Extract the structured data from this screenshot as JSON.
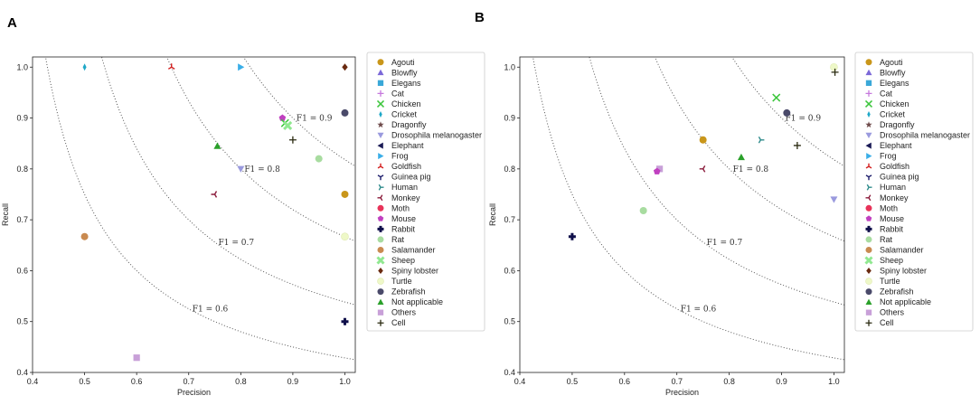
{
  "chart_data": [
    {
      "panel": "A",
      "type": "scatter",
      "xlabel": "Precision",
      "ylabel": "Recall",
      "xlim": [
        0.4,
        1.02
      ],
      "ylim": [
        0.4,
        1.02
      ],
      "xticks": [
        "0.4",
        "0.5",
        "0.6",
        "0.7",
        "0.8",
        "0.9",
        "1.0"
      ],
      "yticks": [
        "0.4",
        "0.5",
        "0.6",
        "0.7",
        "0.8",
        "0.9",
        "1.0"
      ],
      "f1_curves": [
        {
          "f1": 0.6,
          "label": "F1 = 0.6",
          "label_x": 0.7
        },
        {
          "f1": 0.7,
          "label": "F1 = 0.7",
          "label_x": 0.75
        },
        {
          "f1": 0.8,
          "label": "F1 = 0.8",
          "label_x": 0.8
        },
        {
          "f1": 0.9,
          "label": "F1 = 0.9",
          "label_x": 0.9
        }
      ],
      "points": [
        {
          "series": "Agouti",
          "x": 1.0,
          "y": 0.75
        },
        {
          "series": "Cricket",
          "x": 0.5,
          "y": 1.0
        },
        {
          "series": "Goldfish",
          "x": 0.667,
          "y": 1.0
        },
        {
          "series": "Frog",
          "x": 0.8,
          "y": 1.0
        },
        {
          "series": "Spiny lobster",
          "x": 1.0,
          "y": 1.0
        },
        {
          "series": "Zebrafish",
          "x": 1.0,
          "y": 0.91
        },
        {
          "series": "Mouse",
          "x": 0.88,
          "y": 0.9
        },
        {
          "series": "Chicken",
          "x": 0.885,
          "y": 0.89
        },
        {
          "series": "Sheep",
          "x": 0.89,
          "y": 0.885
        },
        {
          "series": "Cell",
          "x": 0.9,
          "y": 0.857
        },
        {
          "series": "Not applicable",
          "x": 0.755,
          "y": 0.845
        },
        {
          "series": "Rat",
          "x": 0.95,
          "y": 0.82
        },
        {
          "series": "Drosophila melanogaster",
          "x": 0.8,
          "y": 0.8
        },
        {
          "series": "Monkey",
          "x": 0.75,
          "y": 0.75
        },
        {
          "series": "Salamander",
          "x": 0.5,
          "y": 0.667
        },
        {
          "series": "Turtle",
          "x": 1.0,
          "y": 0.667
        },
        {
          "series": "Rabbit",
          "x": 1.0,
          "y": 0.5
        },
        {
          "series": "Others",
          "x": 0.6,
          "y": 0.429
        }
      ]
    },
    {
      "panel": "B",
      "type": "scatter",
      "xlabel": "Precision",
      "ylabel": "Recall",
      "xlim": [
        0.4,
        1.02
      ],
      "ylim": [
        0.4,
        1.02
      ],
      "xticks": [
        "0.4",
        "0.5",
        "0.6",
        "0.7",
        "0.8",
        "0.9",
        "1.0"
      ],
      "yticks": [
        "0.4",
        "0.5",
        "0.6",
        "0.7",
        "0.8",
        "0.9",
        "1.0"
      ],
      "f1_curves": [
        {
          "f1": 0.6,
          "label": "F1 = 0.6",
          "label_x": 0.7
        },
        {
          "f1": 0.7,
          "label": "F1 = 0.7",
          "label_x": 0.75
        },
        {
          "f1": 0.8,
          "label": "F1 = 0.8",
          "label_x": 0.8
        },
        {
          "f1": 0.9,
          "label": "F1 = 0.9",
          "label_x": 0.9
        }
      ],
      "points": [
        {
          "series": "Turtle",
          "x": 1.0,
          "y": 1.0
        },
        {
          "series": "Cell",
          "x": 1.002,
          "y": 0.99
        },
        {
          "series": "Chicken",
          "x": 0.89,
          "y": 0.94
        },
        {
          "series": "Zebrafish",
          "x": 0.91,
          "y": 0.91
        },
        {
          "series": "Agouti",
          "x": 0.75,
          "y": 0.857
        },
        {
          "series": "Human",
          "x": 0.86,
          "y": 0.857
        },
        {
          "series": "Cell",
          "x": 0.93,
          "y": 0.846
        },
        {
          "series": "Not applicable",
          "x": 0.823,
          "y": 0.823
        },
        {
          "series": "Others",
          "x": 0.667,
          "y": 0.8
        },
        {
          "series": "Mouse",
          "x": 0.662,
          "y": 0.795
        },
        {
          "series": "Monkey",
          "x": 0.75,
          "y": 0.8
        },
        {
          "series": "Drosophila melanogaster",
          "x": 1.0,
          "y": 0.74
        },
        {
          "series": "Rat",
          "x": 0.636,
          "y": 0.718
        },
        {
          "series": "Rabbit",
          "x": 0.5,
          "y": 0.667
        }
      ]
    }
  ],
  "legend": {
    "placement": "right",
    "entries": [
      {
        "label": "Agouti",
        "marker": "circle",
        "color": "#c9961a"
      },
      {
        "label": "Blowfly",
        "marker": "triangle-up",
        "color": "#7b68d8"
      },
      {
        "label": "Elegans",
        "marker": "square",
        "color": "#3aa8d8"
      },
      {
        "label": "Cat",
        "marker": "plus",
        "color": "#c678dd"
      },
      {
        "label": "Chicken",
        "marker": "x",
        "color": "#3cc63c"
      },
      {
        "label": "Cricket",
        "marker": "thin-diamond",
        "color": "#1fa8c8"
      },
      {
        "label": "Dragonfly",
        "marker": "star",
        "color": "#6e4a4a"
      },
      {
        "label": "Drosophila melanogaster",
        "marker": "triangle-down",
        "color": "#9a9ade"
      },
      {
        "label": "Elephant",
        "marker": "triangle-left",
        "color": "#1a1a55"
      },
      {
        "label": "Frog",
        "marker": "triangle-right",
        "color": "#3aaee8"
      },
      {
        "label": "Goldfish",
        "marker": "tri-down",
        "color": "#d42020"
      },
      {
        "label": "Guinea pig",
        "marker": "tri-up",
        "color": "#1a1a6a"
      },
      {
        "label": "Human",
        "marker": "tri-left",
        "color": "#2e8b8b"
      },
      {
        "label": "Monkey",
        "marker": "tri-right",
        "color": "#8a1a3a"
      },
      {
        "label": "Moth",
        "marker": "circle",
        "color": "#e8335a"
      },
      {
        "label": "Mouse",
        "marker": "pentagon",
        "color": "#c040c0"
      },
      {
        "label": "Rabbit",
        "marker": "plus-filled",
        "color": "#0f0f4a"
      },
      {
        "label": "Rat",
        "marker": "circle",
        "color": "#a8dca0"
      },
      {
        "label": "Salamander",
        "marker": "circle",
        "color": "#c98a50"
      },
      {
        "label": "Sheep",
        "marker": "x-filled",
        "color": "#90e890"
      },
      {
        "label": "Spiny lobster",
        "marker": "diamond",
        "color": "#6a2a10"
      },
      {
        "label": "Turtle",
        "marker": "circle",
        "color": "#eef8c8"
      },
      {
        "label": "Zebrafish",
        "marker": "circle",
        "color": "#4a4a6a"
      },
      {
        "label": "Not applicable",
        "marker": "triangle-up",
        "color": "#2aa02a"
      },
      {
        "label": "Others",
        "marker": "square",
        "color": "#c8a0d8"
      },
      {
        "label": "Cell",
        "marker": "plus",
        "color": "#2a2a10"
      }
    ]
  }
}
